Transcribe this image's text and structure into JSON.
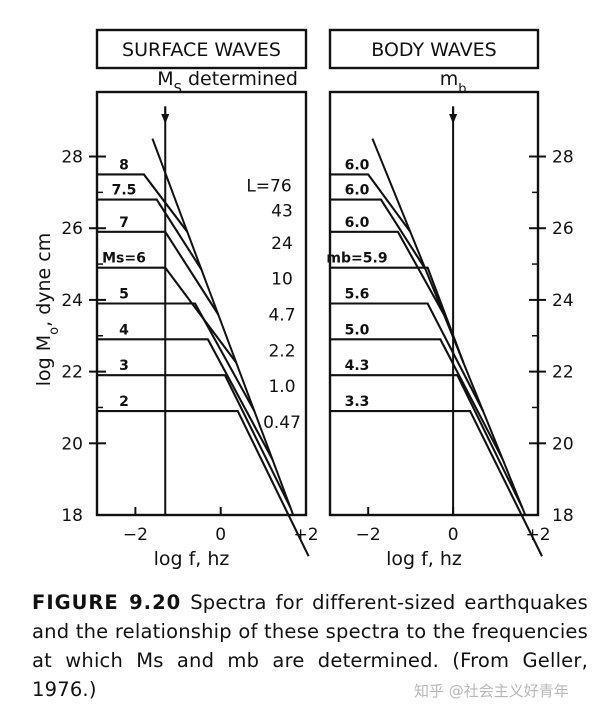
{
  "chart_data": [
    {
      "type": "line",
      "title": "SURFACE WAVES",
      "xlabel": "log f, hz",
      "ylabel": "log M0, dyne cm",
      "xlim": [
        -2.9,
        2.0
      ],
      "ylim": [
        18,
        29.8
      ],
      "xticks": [
        -2,
        0,
        2
      ],
      "xtick_labels": [
        "−2",
        "0",
        "+2"
      ],
      "yticks": [
        20,
        22,
        24,
        26,
        28
      ],
      "yticks_minor": [
        21,
        23,
        25,
        27
      ],
      "marker_line_x": -1.3,
      "marker_label": "M",
      "marker_label_sub": "S",
      "marker_label_suffix": " determined",
      "asymptote": [
        [
          -1.6,
          28.5
        ],
        [
          1.7,
          18
        ]
      ],
      "series": [
        {
          "name": "8",
          "plateau": 27.5,
          "corner": -1.8,
          "length_label": "L=76"
        },
        {
          "name": "7.5",
          "plateau": 26.8,
          "corner": -1.5,
          "length_label": "43"
        },
        {
          "name": "7",
          "plateau": 25.9,
          "corner": -1.3,
          "length_label": "24"
        },
        {
          "name": "Ms=6",
          "plateau": 24.9,
          "corner": -1.3,
          "length_label": "10"
        },
        {
          "name": "5",
          "plateau": 23.9,
          "corner": -0.6,
          "length_label": "4.7"
        },
        {
          "name": "4",
          "plateau": 22.9,
          "corner": -0.3,
          "length_label": "2.2"
        },
        {
          "name": "3",
          "plateau": 21.9,
          "corner": 0.1,
          "length_label": "1.0"
        },
        {
          "name": "2",
          "plateau": 20.9,
          "corner": 0.4,
          "length_label": "0.47"
        }
      ],
      "grid": false
    },
    {
      "type": "line",
      "title": "BODY WAVES",
      "xlabel": "log f, hz",
      "ylabel": "",
      "xlim": [
        -2.9,
        2.0
      ],
      "ylim": [
        18,
        29.8
      ],
      "xticks": [
        -2,
        0,
        2
      ],
      "xtick_labels": [
        "−2",
        "0",
        "+2"
      ],
      "yticks": [
        20,
        22,
        24,
        26,
        28
      ],
      "yticks_minor": [
        21,
        23,
        25,
        27
      ],
      "marker_line_x": 0,
      "marker_label": "m",
      "marker_label_sub": "b",
      "marker_label_suffix": "",
      "asymptote": [
        [
          -1.9,
          28.5
        ],
        [
          1.7,
          18
        ]
      ],
      "series": [
        {
          "name": "6.0",
          "plateau": 27.5,
          "corner": -2.0
        },
        {
          "name": "6.0",
          "plateau": 26.8,
          "corner": -1.7
        },
        {
          "name": "6.0",
          "plateau": 25.9,
          "corner": -1.3
        },
        {
          "name": "mb=5.9",
          "plateau": 24.9,
          "corner": -0.6
        },
        {
          "name": "5.6",
          "plateau": 23.9,
          "corner": -0.6
        },
        {
          "name": "5.0",
          "plateau": 22.9,
          "corner": -0.3
        },
        {
          "name": "4.3",
          "plateau": 21.9,
          "corner": 0.1
        },
        {
          "name": "3.3",
          "plateau": 20.9,
          "corner": 0.4
        }
      ],
      "grid": false
    }
  ],
  "caption": {
    "label": "FIGURE 9.20",
    "text": "Spectra for different-sized earthquakes and the relationship of these spectra to the frequencies at which Ms and mb are determined. (From Geller, 1976.)"
  },
  "watermark": "知乎 @社会主义好青年"
}
